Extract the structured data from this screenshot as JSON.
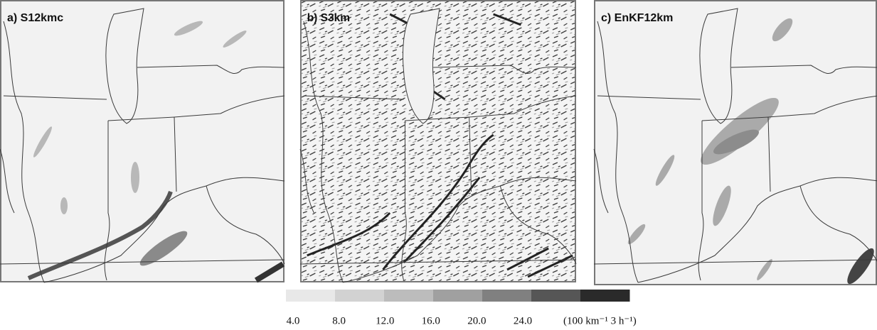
{
  "panels": [
    {
      "label": "a) S12kmc"
    },
    {
      "label": "b) S3km"
    },
    {
      "label": "c) EnKF12km"
    }
  ],
  "colorbar": {
    "colors": [
      "#e8e8e8",
      "#d2d2d2",
      "#bcbcbc",
      "#a0a0a0",
      "#808080",
      "#565656",
      "#2a2a2a"
    ],
    "ticks": [
      {
        "value": 4,
        "label": "4.0"
      },
      {
        "value": 8,
        "label": "8.0"
      },
      {
        "value": 12,
        "label": "12.0"
      },
      {
        "value": 16,
        "label": "16.0"
      },
      {
        "value": 20,
        "label": "20.0"
      },
      {
        "value": 24,
        "label": "24.0"
      }
    ],
    "unit": "(100 km⁻¹ 3 h⁻¹)"
  }
}
